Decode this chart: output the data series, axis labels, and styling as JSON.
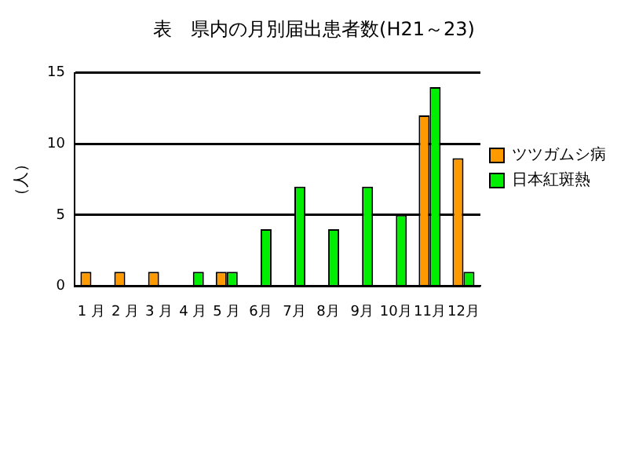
{
  "chart_data": {
    "type": "bar",
    "title": "表　県内の月別届出患者数(H21～23)",
    "ylabel": "（人）",
    "categories": [
      "1 月",
      "2 月",
      "3 月",
      "4 月",
      "5 月",
      "6月",
      "7月",
      "8月",
      "9月",
      "10月",
      "11月",
      "12月"
    ],
    "series": [
      {
        "name": "ツツガムシ病",
        "color": "#ff9900",
        "values": [
          1,
          1,
          1,
          0,
          1,
          0,
          0,
          0,
          0,
          0,
          12,
          9
        ]
      },
      {
        "name": "日本紅斑熱",
        "color": "#00ee00",
        "values": [
          0,
          0,
          0,
          1,
          1,
          4,
          7,
          4,
          7,
          5,
          14,
          1
        ]
      }
    ],
    "ylim": [
      0,
      15
    ],
    "yticks": [
      0,
      5,
      10,
      15
    ],
    "grid": "y",
    "legend": "right"
  }
}
